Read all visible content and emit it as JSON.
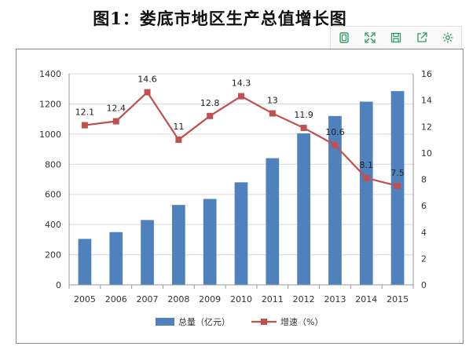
{
  "page": {
    "title": "图1：娄底市地区生产总值增长图"
  },
  "toolbar": {
    "items": [
      {
        "name": "copy-icon"
      },
      {
        "name": "fullscreen-icon"
      },
      {
        "name": "save-icon"
      },
      {
        "name": "share-icon"
      },
      {
        "name": "settings-icon"
      }
    ],
    "color": "#2e9e5e"
  },
  "chart_data": {
    "type": "bar",
    "title": "",
    "categories": [
      "2005",
      "2006",
      "2007",
      "2008",
      "2009",
      "2010",
      "2011",
      "2012",
      "2013",
      "2014",
      "2015"
    ],
    "series": [
      {
        "name": "总量（亿元）",
        "type": "bar",
        "axis": "left",
        "color": "#4f81bd",
        "values": [
          305,
          350,
          430,
          530,
          570,
          680,
          840,
          1005,
          1120,
          1215,
          1285
        ]
      },
      {
        "name": "增速（%）",
        "type": "line",
        "axis": "right",
        "color": "#c0504d",
        "values": [
          12.1,
          12.4,
          14.6,
          11,
          12.8,
          14.3,
          13,
          11.9,
          10.6,
          8.1,
          7.5
        ],
        "labels": [
          "12.1",
          "12.4",
          "14.6",
          "11",
          "12.8",
          "14.3",
          "13",
          "11.9",
          "10.6",
          "8.1",
          "7.5"
        ]
      }
    ],
    "y_left": {
      "min": 0,
      "max": 1400,
      "ticks": [
        "0",
        "200",
        "400",
        "600",
        "800",
        "1000",
        "1200",
        "1400"
      ]
    },
    "y_right": {
      "min": 0,
      "max": 16,
      "ticks": [
        "0",
        "2",
        "4",
        "6",
        "8",
        "10",
        "12",
        "14",
        "16"
      ]
    },
    "grid": true,
    "legend": {
      "position": "bottom"
    }
  }
}
